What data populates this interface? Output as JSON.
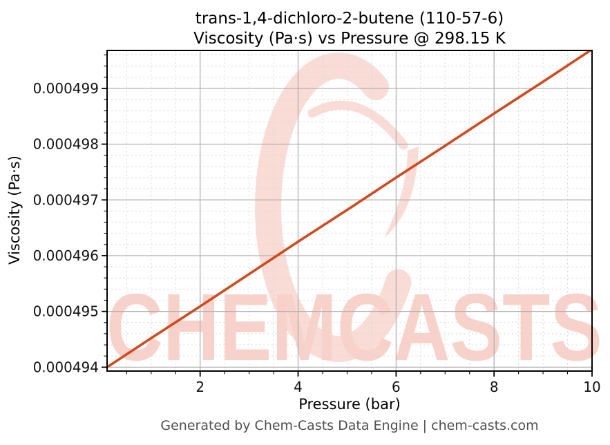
{
  "chart_data": {
    "type": "line",
    "title_lines": [
      "trans-1,4-dichloro-2-butene (110-57-6)",
      "Viscosity (Pa·s) vs Pressure @ 298.15 K"
    ],
    "xlabel": "Pressure (bar)",
    "ylabel": "Viscosity (Pa·s)",
    "xlim": [
      0.1,
      10
    ],
    "ylim": [
      0.00049393,
      0.00049968
    ],
    "xticks": [
      2,
      4,
      6,
      8,
      10
    ],
    "xtick_labels": [
      "2",
      "4",
      "6",
      "8",
      "10"
    ],
    "yticks": [
      0.000494,
      0.000495,
      0.000496,
      0.000497,
      0.000498,
      0.000499
    ],
    "ytick_labels": [
      "0.000494",
      "0.000495",
      "0.000496",
      "0.000497",
      "0.000498",
      "0.000499"
    ],
    "x_minor_step": 0.5,
    "y_minor_step": 2e-07,
    "grid": true,
    "legend_position": "none",
    "series": [
      {
        "name": "Viscosity (Pa·s)",
        "color": "#d2491e",
        "x": [
          0.1,
          1,
          2,
          3,
          4,
          5,
          6,
          7,
          8,
          9,
          10
        ],
        "y": [
          0.000494,
          0.00049452,
          0.00049509,
          0.00049567,
          0.00049625,
          0.00049682,
          0.0004974,
          0.00049797,
          0.00049855,
          0.00049912,
          0.0004997
        ]
      }
    ]
  },
  "watermark": {
    "text": "CHEMCASTS",
    "text_color": "#f8d2ca",
    "ring_color": "#f9dcd5"
  },
  "footer": {
    "text": "Generated by Chem-Casts Data Engine | chem-casts.com"
  },
  "colors": {
    "line": "#d2491e",
    "grid_major": "#b0b0b0",
    "grid_minor": "#d8d8d8",
    "spine": "#000000",
    "tick_label": "#111111",
    "footer_text": "#4f4f4f"
  }
}
